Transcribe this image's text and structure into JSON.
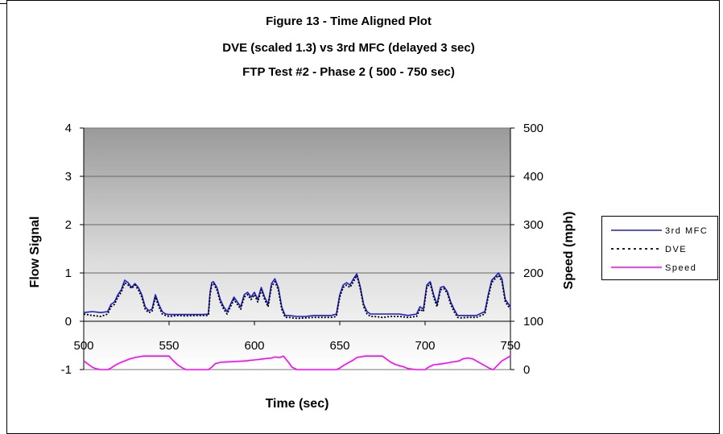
{
  "chart_data": {
    "type": "line",
    "title": [
      "Figure 13 - Time Aligned Plot",
      "DVE (scaled 1.3) vs 3rd MFC (delayed 3 sec)",
      "FTP Test #2 - Phase 2 ( 500 - 750 sec)"
    ],
    "xlabel": "Time (sec)",
    "ylabel": "Flow Signal",
    "y2label": "Speed (mph)",
    "xlim": [
      500,
      750
    ],
    "ylim": [
      -1,
      4
    ],
    "y2lim": [
      0,
      500
    ],
    "x_ticks": [
      "500",
      "550",
      "600",
      "650",
      "700",
      "750"
    ],
    "y_ticks": [
      "-1",
      "0",
      "1",
      "2",
      "3",
      "4"
    ],
    "y2_ticks": [
      "0",
      "100",
      "200",
      "300",
      "400",
      "500"
    ],
    "grid": "horizontal major",
    "plot_background": "gradient grey (top) to white (bottom)",
    "legend_position": "right",
    "series": [
      {
        "name": "3rd MFC",
        "axis": "left",
        "color": "#1f1fc8",
        "style": "solid",
        "x": [
          500,
          505,
          510,
          514,
          516,
          518,
          520,
          522,
          524,
          526,
          528,
          530,
          532,
          534,
          536,
          538,
          540,
          542,
          544,
          546,
          548,
          550,
          555,
          560,
          565,
          570,
          573,
          574,
          575,
          576,
          578,
          580,
          582,
          584,
          586,
          588,
          590,
          592,
          594,
          596,
          598,
          600,
          602,
          604,
          606,
          608,
          610,
          612,
          614,
          616,
          618,
          620,
          625,
          630,
          635,
          640,
          645,
          648,
          650,
          652,
          654,
          656,
          658,
          660,
          662,
          664,
          666,
          668,
          670,
          675,
          680,
          685,
          690,
          695,
          697,
          699,
          701,
          703,
          705,
          707,
          709,
          711,
          713,
          715,
          717,
          719,
          721,
          725,
          730,
          735,
          737,
          739,
          741,
          743,
          745,
          747,
          750
        ],
        "values": [
          0.18,
          0.2,
          0.18,
          0.2,
          0.35,
          0.4,
          0.55,
          0.65,
          0.85,
          0.8,
          0.7,
          0.78,
          0.7,
          0.55,
          0.3,
          0.22,
          0.25,
          0.55,
          0.35,
          0.2,
          0.15,
          0.14,
          0.14,
          0.14,
          0.14,
          0.14,
          0.15,
          0.6,
          0.8,
          0.82,
          0.7,
          0.45,
          0.3,
          0.2,
          0.35,
          0.5,
          0.4,
          0.3,
          0.55,
          0.6,
          0.5,
          0.6,
          0.45,
          0.7,
          0.5,
          0.35,
          0.78,
          0.88,
          0.7,
          0.3,
          0.12,
          0.12,
          0.1,
          0.1,
          0.12,
          0.12,
          0.12,
          0.15,
          0.55,
          0.75,
          0.8,
          0.75,
          0.88,
          0.98,
          0.72,
          0.35,
          0.2,
          0.15,
          0.15,
          0.15,
          0.15,
          0.15,
          0.12,
          0.15,
          0.3,
          0.25,
          0.75,
          0.82,
          0.55,
          0.35,
          0.7,
          0.72,
          0.62,
          0.4,
          0.25,
          0.12,
          0.12,
          0.12,
          0.12,
          0.2,
          0.55,
          0.85,
          0.92,
          1.0,
          0.88,
          0.45,
          0.3
        ]
      },
      {
        "name": "DVE",
        "axis": "left",
        "color": "#000000",
        "style": "dotted",
        "x": [
          500,
          505,
          510,
          514,
          516,
          518,
          520,
          522,
          524,
          526,
          528,
          530,
          532,
          534,
          536,
          538,
          540,
          542,
          544,
          546,
          548,
          550,
          555,
          560,
          565,
          570,
          573,
          574,
          575,
          576,
          578,
          580,
          582,
          584,
          586,
          588,
          590,
          592,
          594,
          596,
          598,
          600,
          602,
          604,
          606,
          608,
          610,
          612,
          614,
          616,
          618,
          620,
          625,
          630,
          635,
          640,
          645,
          648,
          650,
          652,
          654,
          656,
          658,
          660,
          662,
          664,
          666,
          668,
          670,
          675,
          680,
          685,
          690,
          695,
          697,
          699,
          701,
          703,
          705,
          707,
          709,
          711,
          713,
          715,
          717,
          719,
          721,
          725,
          730,
          735,
          737,
          739,
          741,
          743,
          745,
          747,
          750
        ],
        "values": [
          0.15,
          0.12,
          0.1,
          0.15,
          0.3,
          0.35,
          0.5,
          0.6,
          0.8,
          0.75,
          0.68,
          0.75,
          0.65,
          0.5,
          0.25,
          0.18,
          0.2,
          0.5,
          0.3,
          0.15,
          0.12,
          0.1,
          0.12,
          0.11,
          0.12,
          0.12,
          0.12,
          0.55,
          0.75,
          0.78,
          0.65,
          0.4,
          0.25,
          0.15,
          0.3,
          0.45,
          0.35,
          0.25,
          0.5,
          0.55,
          0.45,
          0.55,
          0.4,
          0.65,
          0.45,
          0.3,
          0.72,
          0.82,
          0.65,
          0.25,
          0.08,
          0.08,
          0.06,
          0.07,
          0.08,
          0.08,
          0.08,
          0.1,
          0.5,
          0.7,
          0.75,
          0.7,
          0.82,
          0.95,
          0.68,
          0.3,
          0.15,
          0.1,
          0.1,
          0.08,
          0.1,
          0.1,
          0.08,
          0.1,
          0.25,
          0.2,
          0.7,
          0.78,
          0.5,
          0.3,
          0.65,
          0.68,
          0.58,
          0.35,
          0.2,
          0.08,
          0.07,
          0.08,
          0.08,
          0.15,
          0.5,
          0.8,
          0.88,
          0.95,
          0.82,
          0.4,
          0.25
        ]
      },
      {
        "name": "Speed",
        "axis": "right",
        "color": "#ff00ff",
        "style": "solid",
        "x": [
          500,
          503,
          505,
          507,
          510,
          512,
          514,
          516,
          518,
          520,
          522,
          524,
          527,
          530,
          535,
          540,
          545,
          548,
          550,
          552,
          555,
          558,
          560,
          565,
          570,
          573,
          575,
          577,
          580,
          585,
          590,
          595,
          600,
          605,
          610,
          612,
          615,
          617,
          620,
          622,
          625,
          630,
          635,
          640,
          645,
          648,
          650,
          652,
          655,
          658,
          660,
          665,
          670,
          672,
          675,
          678,
          680,
          683,
          685,
          688,
          690,
          695,
          698,
          700,
          702,
          705,
          710,
          715,
          720,
          722,
          725,
          728,
          730,
          733,
          735,
          738,
          740,
          745,
          750
        ],
        "values": [
          18,
          10,
          5,
          2,
          0,
          0,
          0,
          3,
          8,
          12,
          15,
          18,
          22,
          25,
          28,
          28,
          28,
          28,
          28,
          20,
          10,
          3,
          0,
          0,
          0,
          0,
          5,
          12,
          15,
          16,
          17,
          18,
          20,
          22,
          24,
          26,
          25,
          28,
          15,
          5,
          0,
          0,
          0,
          0,
          0,
          0,
          3,
          8,
          14,
          20,
          25,
          28,
          28,
          28,
          28,
          20,
          15,
          10,
          8,
          5,
          2,
          0,
          0,
          0,
          5,
          10,
          12,
          15,
          18,
          22,
          24,
          22,
          18,
          12,
          8,
          2,
          0,
          18,
          28
        ]
      }
    ]
  }
}
